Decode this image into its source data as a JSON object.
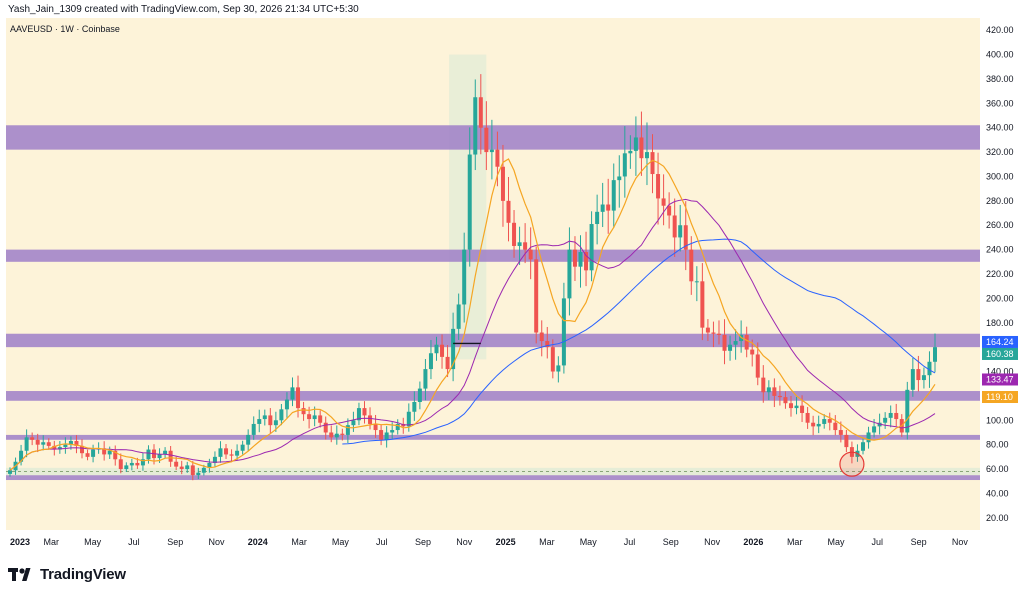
{
  "header": {
    "byline": "Yash_Jain_1309 created with TradingView.com, Sep 30, 2026 21:34 UTC+5:30",
    "symbol": "AAVEUSD · 1W · Coinbase"
  },
  "footer": {
    "brand": "TradingView",
    "logo_icon": "tradingview-logo-icon"
  },
  "colors": {
    "background": "#fdf3d9",
    "up": "#26a69a",
    "down": "#ef5350",
    "zone": "#9e7ec8",
    "ma_orange": "#f5a623",
    "ma_purple": "#9c27b0",
    "ma_blue": "#2962ff",
    "highlight_band": "#e3ecd6",
    "circle": "#e53935"
  },
  "chart_data": {
    "type": "candlestick",
    "ylim": [
      10,
      430
    ],
    "y_ticks": [
      20,
      40,
      60,
      80,
      100,
      120,
      140,
      160,
      180,
      200,
      220,
      240,
      260,
      280,
      300,
      320,
      340,
      360,
      380,
      400,
      420
    ],
    "x_ticks": [
      "2023",
      "Mar",
      "May",
      "Jul",
      "Sep",
      "Nov",
      "2024",
      "Mar",
      "May",
      "Jul",
      "Sep",
      "Nov",
      "2025",
      "Mar",
      "May",
      "Jul",
      "Sep",
      "Nov",
      "2026",
      "Mar",
      "May",
      "Jul",
      "Sep",
      "Nov"
    ],
    "zones": [
      {
        "low": 322,
        "high": 342
      },
      {
        "low": 230,
        "high": 240
      },
      {
        "low": 160,
        "high": 171
      },
      {
        "low": 116,
        "high": 124
      },
      {
        "low": 84,
        "high": 88
      },
      {
        "low": 51,
        "high": 55
      }
    ],
    "dashed_level": 58,
    "lower_band": [
      55,
      61
    ],
    "price_tags": [
      {
        "value": 164.24,
        "label": "164.24",
        "color": "#2962ff"
      },
      {
        "value": 160.38,
        "label": "160.38",
        "color": "#26a69a"
      },
      {
        "value": 133.47,
        "label": "133.47",
        "color": "#9c27b0"
      },
      {
        "value": 119.1,
        "label": "119.10",
        "color": "#f5a623"
      }
    ],
    "closes": [
      59,
      66,
      75,
      86,
      84,
      80,
      82,
      79,
      76,
      78,
      80,
      83,
      79,
      73,
      70,
      76,
      77,
      72,
      75,
      68,
      60,
      63,
      65,
      63,
      68,
      76,
      69,
      72,
      75,
      66,
      62,
      60,
      63,
      55,
      57,
      61,
      65,
      70,
      77,
      72,
      71,
      75,
      80,
      88,
      97,
      101,
      104,
      96,
      100,
      109,
      117,
      127,
      110,
      105,
      101,
      104,
      98,
      90,
      86,
      89,
      88,
      96,
      100,
      110,
      104,
      97,
      92,
      84,
      90,
      92,
      97,
      95,
      107,
      115,
      126,
      142,
      155,
      162,
      152,
      142,
      175,
      195,
      240,
      318,
      365,
      340,
      320,
      322,
      308,
      280,
      262,
      243,
      246,
      240,
      232,
      172,
      165,
      160,
      140,
      145,
      200,
      240,
      226,
      238,
      223,
      261,
      271,
      277,
      272,
      297,
      300,
      319,
      321,
      332,
      315,
      320,
      302,
      282,
      276,
      268,
      250,
      260,
      240,
      214,
      214,
      176,
      172,
      171,
      170,
      157,
      162,
      165,
      170,
      158,
      154,
      135,
      123,
      127,
      120,
      119,
      114,
      110,
      112,
      106,
      98,
      95,
      97,
      101,
      98,
      92,
      88,
      78,
      70,
      75,
      82,
      90,
      95,
      98,
      102,
      106,
      101,
      90,
      125,
      142,
      133,
      137,
      148,
      160
    ]
  }
}
